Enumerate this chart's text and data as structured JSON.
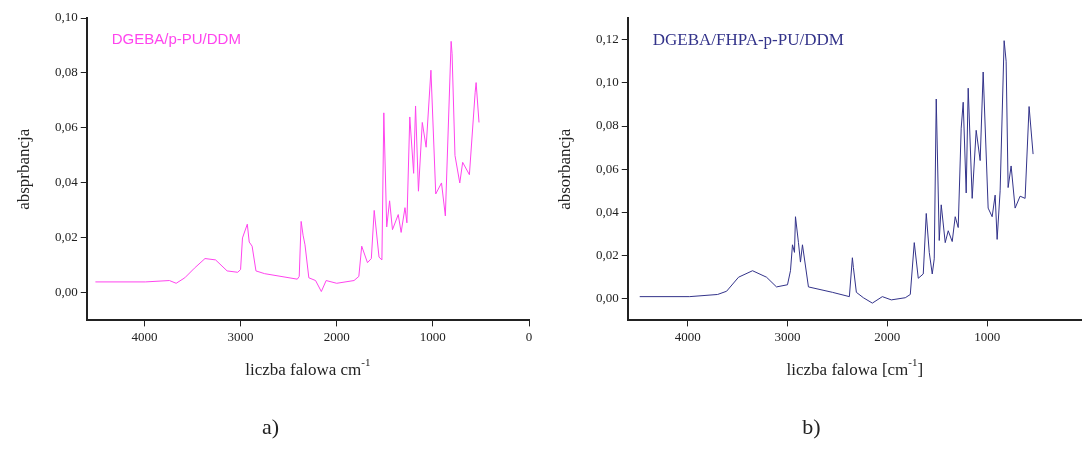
{
  "chart_data": [
    {
      "type": "line",
      "xlabel": "liczba falowa cm$^{-1}$",
      "ylabel": "absprbancja",
      "annotations": [
        "a)"
      ],
      "legend": "top left",
      "grid": false,
      "marker": "none",
      "line_style": "solid",
      "xlim": [
        4600,
        0
      ],
      "xticks": [
        4000,
        3000,
        2000,
        1000,
        0
      ],
      "ylim": [
        -0.01,
        0.1
      ],
      "yticks": [
        {
          "value": 0,
          "label": "0,00"
        },
        {
          "value": 0.02,
          "label": "0,02"
        },
        {
          "value": 0.04,
          "label": "0,04"
        },
        {
          "value": 0.06,
          "label": "0,06"
        },
        {
          "value": 0.08,
          "label": "0,08"
        },
        {
          "value": 0.1,
          "label": "0,10"
        }
      ],
      "series": [
        {
          "name": "DGEBA/p-PU/DDM",
          "color": "#ff44ee",
          "x": [
            4510,
            3990,
            3740,
            3670,
            3580,
            3480,
            3370,
            3260,
            3140,
            3030,
            3000,
            2980,
            2930,
            2910,
            2880,
            2840,
            2750,
            2410,
            2390,
            2370,
            2350,
            2330,
            2290,
            2220,
            2160,
            2110,
            2000,
            1820,
            1770,
            1740,
            1680,
            1640,
            1610,
            1560,
            1530,
            1510,
            1480,
            1450,
            1420,
            1360,
            1330,
            1290,
            1270,
            1240,
            1200,
            1180,
            1150,
            1110,
            1070,
            1020,
            970,
            910,
            870,
            810,
            800,
            770,
            720,
            690,
            620,
            560,
            550,
            520
          ],
          "values": [
            0.004,
            0.004,
            0.0045,
            0.0035,
            0.0055,
            0.009,
            0.0125,
            0.012,
            0.008,
            0.0075,
            0.0085,
            0.02,
            0.025,
            0.0185,
            0.017,
            0.008,
            0.007,
            0.005,
            0.006,
            0.026,
            0.021,
            0.0175,
            0.0055,
            0.0045,
            0.0005,
            0.0045,
            0.0035,
            0.0045,
            0.006,
            0.017,
            0.011,
            0.0125,
            0.03,
            0.013,
            0.012,
            0.0655,
            0.024,
            0.0335,
            0.023,
            0.0285,
            0.022,
            0.031,
            0.0255,
            0.064,
            0.0435,
            0.068,
            0.037,
            0.062,
            0.053,
            0.081,
            0.036,
            0.04,
            0.028,
            0.0915,
            0.087,
            0.05,
            0.04,
            0.0475,
            0.043,
            0.073,
            0.0765,
            0.062
          ]
        }
      ]
    },
    {
      "type": "line",
      "xlabel": "liczba falowa [cm$^{-1}$]",
      "ylabel": "absorbancja",
      "annotations": [
        "b)"
      ],
      "legend": "top left",
      "grid": false,
      "marker": "none",
      "line_style": "solid",
      "xlim": [
        4600,
        50
      ],
      "xticks": [
        4000,
        3000,
        2000,
        1000
      ],
      "ylim": [
        -0.01,
        0.13
      ],
      "yticks": [
        {
          "value": 0,
          "label": "0,00"
        },
        {
          "value": 0.02,
          "label": "0,02"
        },
        {
          "value": 0.04,
          "label": "0,04"
        },
        {
          "value": 0.06,
          "label": "0,06"
        },
        {
          "value": 0.08,
          "label": "0,08"
        },
        {
          "value": 0.1,
          "label": "0,10"
        },
        {
          "value": 0.12,
          "label": "0,12"
        }
      ],
      "series": [
        {
          "name": "DGEBA/FHPA-p-PU/DDM",
          "color": "#33338a",
          "x": [
            4480,
            3980,
            3700,
            3610,
            3490,
            3350,
            3210,
            3110,
            3000,
            2970,
            2950,
            2930,
            2920,
            2890,
            2870,
            2850,
            2790,
            2550,
            2380,
            2350,
            2340,
            2310,
            2240,
            2150,
            2050,
            1960,
            1820,
            1770,
            1730,
            1690,
            1640,
            1610,
            1580,
            1550,
            1530,
            1510,
            1480,
            1460,
            1420,
            1390,
            1350,
            1320,
            1290,
            1260,
            1240,
            1210,
            1190,
            1150,
            1110,
            1070,
            1040,
            990,
            950,
            920,
            900,
            870,
            830,
            810,
            790,
            760,
            720,
            670,
            620,
            580,
            540
          ],
          "values": [
            0.001,
            0.001,
            0.002,
            0.0035,
            0.01,
            0.013,
            0.01,
            0.0055,
            0.0065,
            0.013,
            0.025,
            0.0215,
            0.038,
            0.026,
            0.017,
            0.025,
            0.0055,
            0.003,
            0.001,
            0.019,
            0.0145,
            0.003,
            0.0005,
            -0.002,
            0.001,
            -0.0005,
            0.0005,
            0.002,
            0.026,
            0.0095,
            0.0115,
            0.0395,
            0.0215,
            0.0115,
            0.0185,
            0.0925,
            0.027,
            0.0435,
            0.026,
            0.0315,
            0.0265,
            0.038,
            0.033,
            0.079,
            0.091,
            0.049,
            0.0975,
            0.0465,
            0.078,
            0.064,
            0.105,
            0.042,
            0.038,
            0.048,
            0.0275,
            0.05,
            0.1195,
            0.11,
            0.0515,
            0.0615,
            0.042,
            0.0475,
            0.0465,
            0.089,
            0.067
          ]
        }
      ]
    }
  ]
}
